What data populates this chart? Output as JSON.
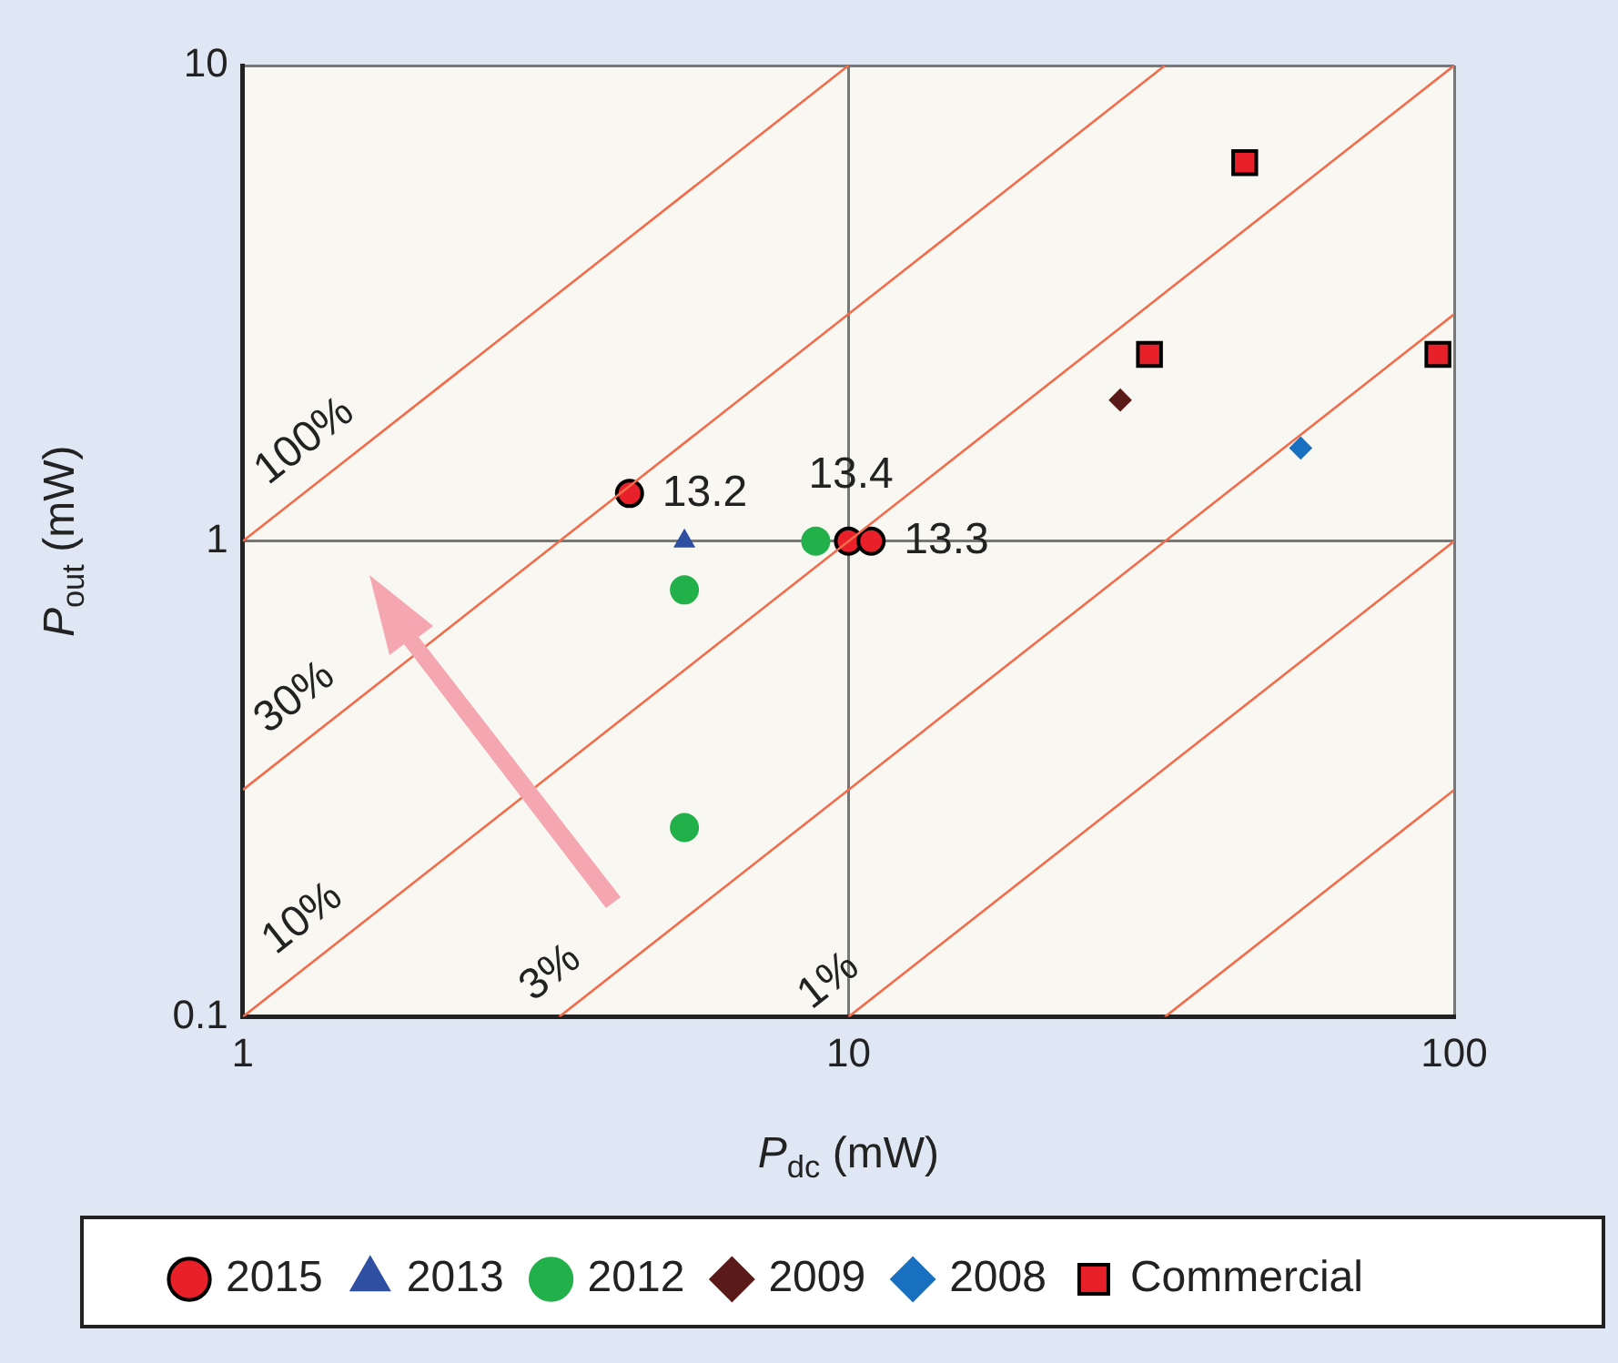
{
  "chart_data": {
    "type": "scatter",
    "xlabel": "P$_{dc}$ (mW)",
    "ylabel": "P$_{out}$ (mW)",
    "log": "xy",
    "xlim": [
      1,
      100
    ],
    "ylim": [
      0.1,
      10
    ],
    "xticks": [
      1,
      10,
      100
    ],
    "yticks": [
      0.1,
      1,
      10
    ],
    "grid": true,
    "legend": "bottom",
    "series": [
      {
        "type": "line",
        "color": "#f26b4a",
        "marker": "none",
        "x": [
          1,
          10
        ],
        "values": [
          1,
          10
        ]
      },
      {
        "type": "line",
        "color": "#f26b4a",
        "marker": "none",
        "x": [
          1,
          33.3
        ],
        "values": [
          0.3,
          10
        ]
      },
      {
        "type": "line",
        "color": "#f26b4a",
        "marker": "none",
        "x": [
          1,
          100
        ],
        "values": [
          0.1,
          10
        ]
      },
      {
        "type": "line",
        "color": "#f26b4a",
        "marker": "none",
        "x": [
          3.33,
          100
        ],
        "values": [
          0.1,
          3
        ]
      },
      {
        "type": "line",
        "color": "#f26b4a",
        "marker": "none",
        "x": [
          10,
          100
        ],
        "values": [
          0.1,
          1
        ]
      },
      {
        "type": "line",
        "color": "#f26b4a",
        "marker": "none",
        "x": [
          33.3,
          100
        ],
        "values": [
          0.1,
          0.3
        ]
      },
      {
        "name": "2015",
        "color": "#e8202a",
        "marker": "circle",
        "x": [
          4.35,
          10,
          10.9
        ],
        "values": [
          1.26,
          1,
          1
        ]
      },
      {
        "name": "2013",
        "color": "#2f4fa2",
        "marker": "triangle",
        "x": [
          5.36
        ],
        "values": [
          1
        ]
      },
      {
        "name": "2012",
        "color": "#22b04a",
        "marker": "circle",
        "x": [
          8.83,
          5.36,
          5.36
        ],
        "values": [
          1,
          0.79,
          0.25
        ]
      },
      {
        "name": "2009",
        "color": "#5a1a1a",
        "marker": "diamond",
        "x": [
          28.1
        ],
        "values": [
          1.98
        ]
      },
      {
        "name": "2008",
        "color": "#1a70c0",
        "marker": "diamond",
        "x": [
          55.8
        ],
        "values": [
          1.57
        ]
      },
      {
        "name": "Commercial",
        "color": "#e8202a",
        "marker": "square",
        "x": [
          45.1,
          31.4,
          94
        ],
        "values": [
          6.25,
          2.47,
          2.47
        ]
      }
    ],
    "annotations": [
      {
        "text": "13.2",
        "x": 4.35,
        "y": 1.26
      },
      {
        "text": "13.4",
        "x": 10,
        "y": 1
      },
      {
        "text": "13.3",
        "x": 10.9,
        "y": 1
      },
      {
        "text": "100%",
        "x": 1.39,
        "y": 1.39
      },
      {
        "text": "30%",
        "x": 1.34,
        "y": 0.402
      },
      {
        "text": "10%",
        "x": 1.38,
        "y": 0.138
      },
      {
        "text": "3%",
        "x": 3.54,
        "y": 0.106
      },
      {
        "text": "1%",
        "x": 10.2,
        "y": 0.102
      }
    ]
  }
}
